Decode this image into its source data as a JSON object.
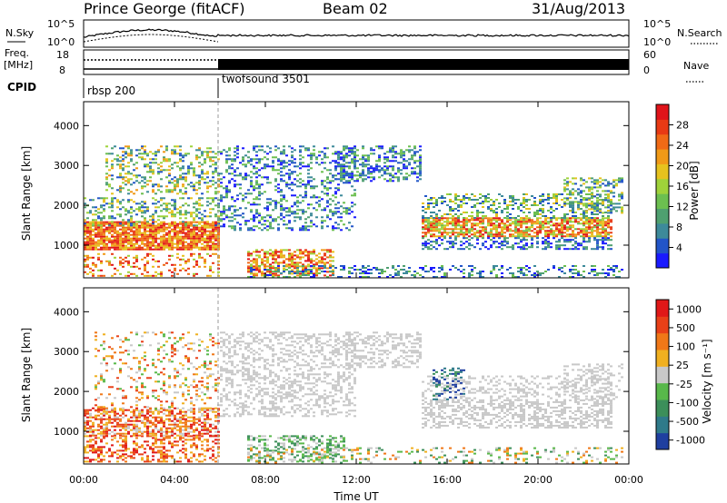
{
  "header": {
    "station": "Prince George (fitACF)",
    "beam": "Beam 02",
    "date": "31/Aug/2013"
  },
  "panels": {
    "nsky_label": "N.Sky",
    "nsearch_label": "N.Search",
    "freq_label_line1": "Freq.",
    "freq_label_line2": "[MHz]",
    "nave_label": "Nave",
    "cpid_label": "CPID",
    "cpid_segments": [
      "rbsp 200",
      "twofsound 3501"
    ],
    "nsky_ticks": [
      "10^5",
      "10^0"
    ],
    "nsearch_ticks": [
      "10^5",
      "10^0"
    ],
    "freq_ticks": [
      "18",
      "8"
    ],
    "nave_ticks": [
      "60",
      "0"
    ]
  },
  "chart_data": [
    {
      "type": "heatmap",
      "title": "",
      "ylabel": "Slant Range [km]",
      "xlabel": "",
      "xlim": [
        "00:00",
        "00:00"
      ],
      "ylim": [
        180,
        4600
      ],
      "y_ticks": [
        1000,
        2000,
        3000,
        4000
      ],
      "colorbar_label": "Power [dB]",
      "colorbar_ticks": [
        4,
        8,
        12,
        16,
        20,
        24,
        28
      ],
      "colormap": [
        "#1a1aff",
        "#2255c8",
        "#3d8a9a",
        "#4fa070",
        "#6cbf50",
        "#9fd23a",
        "#e6c21e",
        "#f09a18",
        "#f06a16",
        "#e83a14",
        "#e0141a"
      ]
    },
    {
      "type": "heatmap",
      "title": "",
      "ylabel": "Slant Range [km]",
      "xlabel": "Time UT",
      "x_ticks": [
        "00:00",
        "04:00",
        "08:00",
        "12:00",
        "16:00",
        "20:00",
        "00:00"
      ],
      "ylim": [
        180,
        4600
      ],
      "y_ticks": [
        1000,
        2000,
        3000,
        4000
      ],
      "colorbar_label": "Velocity [m s⁻¹]",
      "colorbar_ticks": [
        1000,
        500,
        100,
        25,
        -25,
        -100,
        -500,
        -1000
      ],
      "colormap": [
        "#1f3fa0",
        "#2f7a8a",
        "#3c8f5a",
        "#58b84a",
        "#c8c8c8",
        "#f0b020",
        "#f07818",
        "#e84018",
        "#e01818"
      ]
    }
  ]
}
